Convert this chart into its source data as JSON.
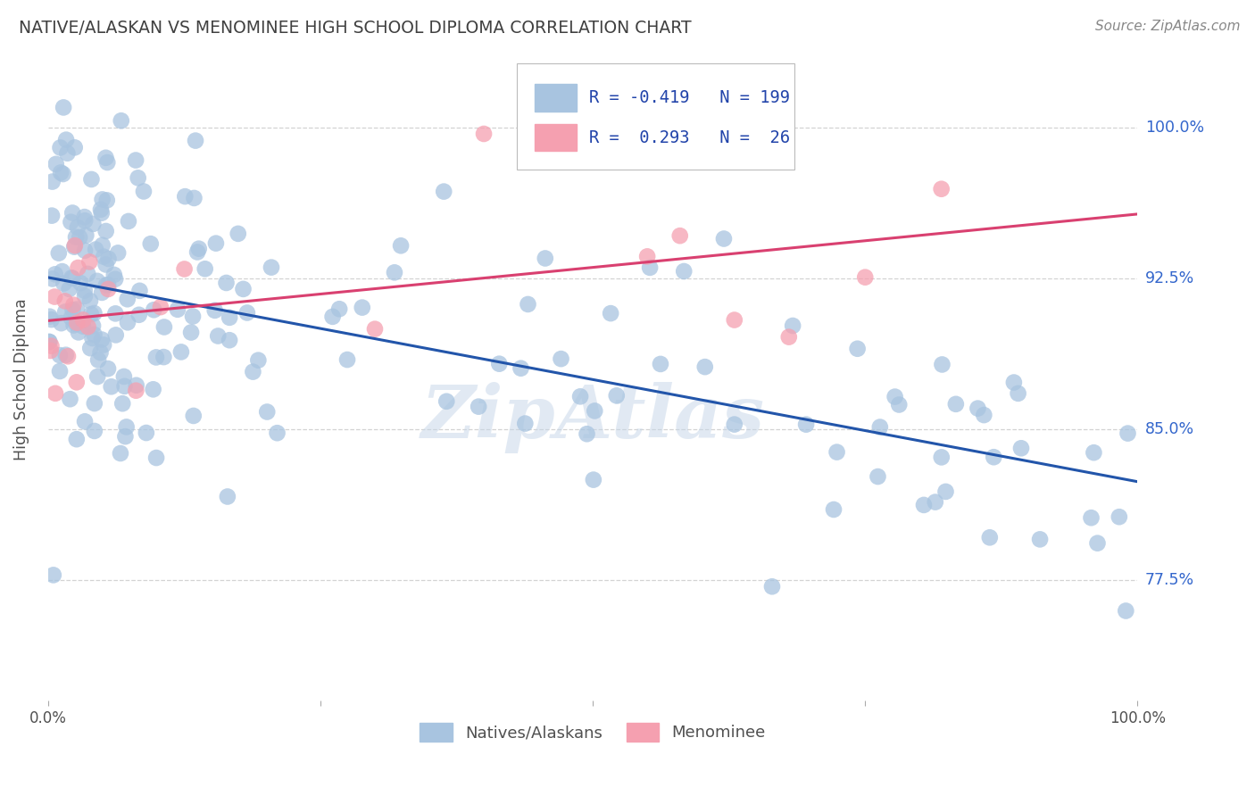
{
  "title": "NATIVE/ALASKAN VS MENOMINEE HIGH SCHOOL DIPLOMA CORRELATION CHART",
  "source": "Source: ZipAtlas.com",
  "ylabel": "High School Diploma",
  "watermark": "ZipAtlas",
  "legend_blue_label": "Natives/Alaskans",
  "legend_pink_label": "Menominee",
  "legend_blue_R": -0.419,
  "legend_blue_N": 199,
  "legend_pink_R": 0.293,
  "legend_pink_N": 26,
  "ytick_labels": [
    "77.5%",
    "85.0%",
    "92.5%",
    "100.0%"
  ],
  "ytick_values": [
    0.775,
    0.85,
    0.925,
    1.0
  ],
  "xlim": [
    0.0,
    1.0
  ],
  "ylim": [
    0.715,
    1.035
  ],
  "blue_color": "#a8c4e0",
  "pink_color": "#f5a0b0",
  "blue_line_color": "#2255aa",
  "pink_line_color": "#d94070",
  "background_color": "#ffffff",
  "grid_color": "#c8c8c8",
  "title_color": "#404040",
  "axis_label_color": "#505050",
  "ytick_color": "#3366cc",
  "xtick_color": "#505050",
  "legend_text_color": "#2244aa",
  "blue_trend_y0": 0.9255,
  "blue_trend_y1": 0.824,
  "pink_trend_y0": 0.904,
  "pink_trend_y1": 0.957,
  "blue_seed": 77,
  "pink_seed": 55,
  "marker_size": 180,
  "marker_alpha": 0.75
}
